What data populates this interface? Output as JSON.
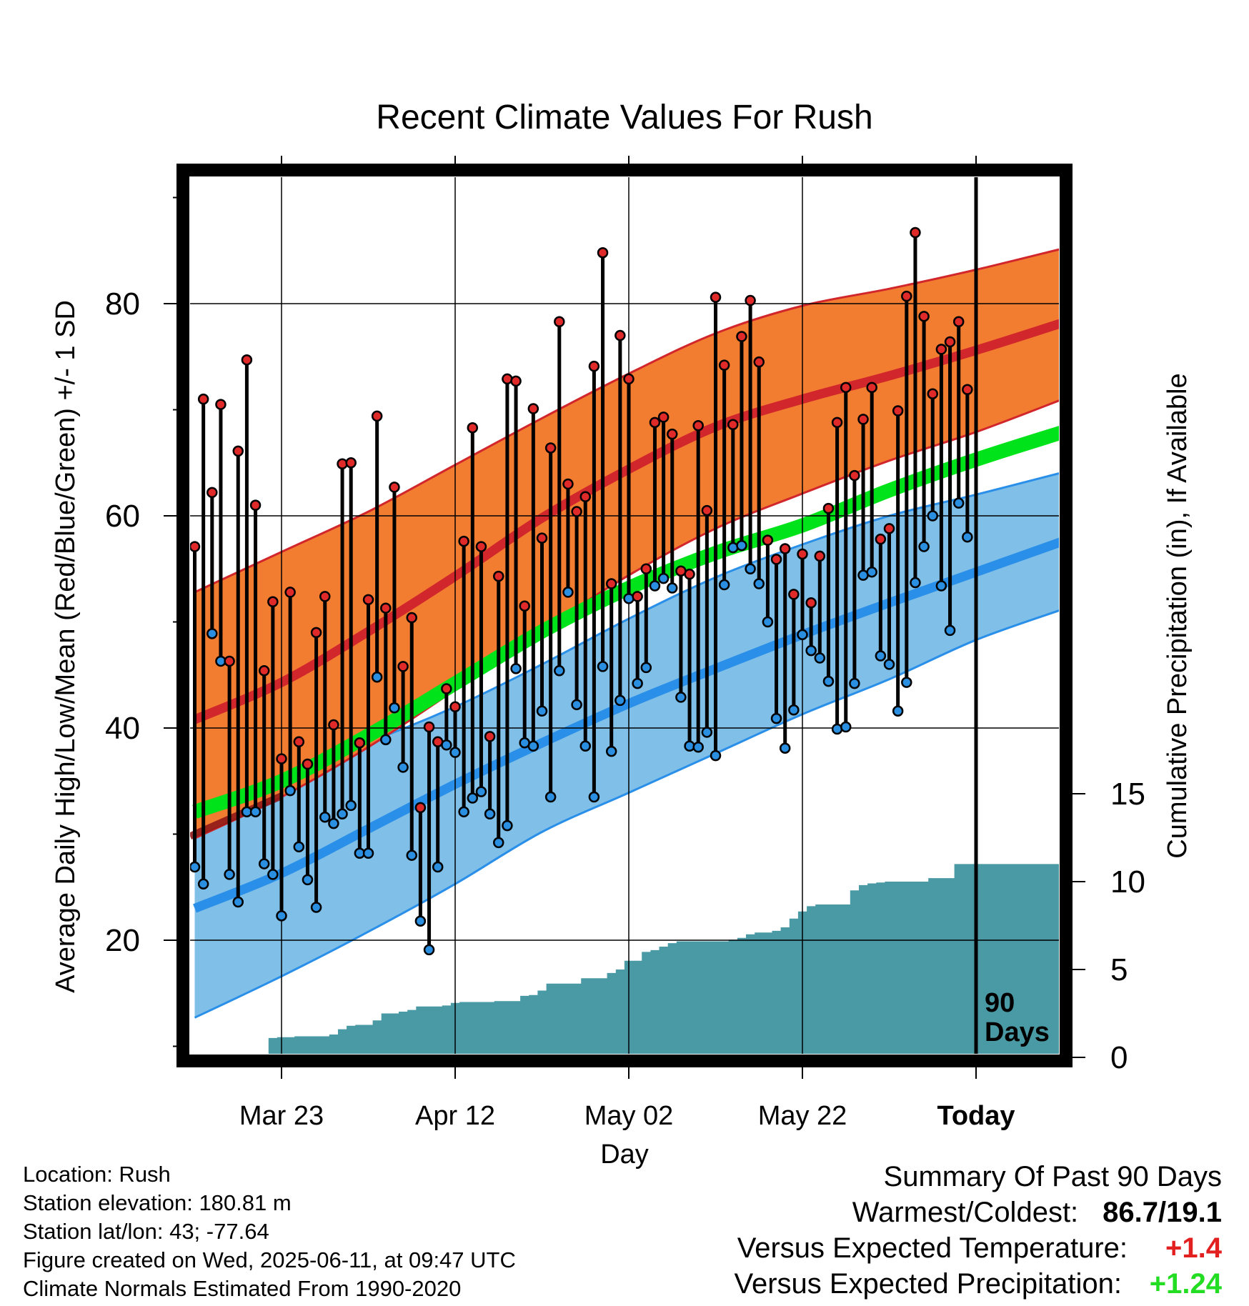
{
  "chart_data": {
    "type": "line",
    "title": "Recent Climate Values For Rush",
    "xlabel": "Day",
    "ylabel": "Average Daily High/Low/Mean (Red/Blue/Green) +/- 1 SD",
    "y2label": "Cumulative Precipitation (in), If Available",
    "xlim": [
      -11,
      90
    ],
    "ylim": [
      8,
      92
    ],
    "y2lim": [
      0,
      40
    ],
    "yticks": [
      20,
      40,
      60,
      80
    ],
    "y2ticks": [
      0,
      5,
      10,
      15
    ],
    "xtick_days": [
      0,
      20,
      40,
      60,
      80
    ],
    "xtick_labels": [
      "Mar 23",
      "Apr 12",
      "May 02",
      "May 22",
      "Today"
    ],
    "today_marker": {
      "day": 80,
      "label_line1": "90",
      "label_line2": "Days"
    },
    "colors": {
      "high_band": "#f27c2f",
      "high_mean": "#d1262c",
      "high_dark": "#8f1a1a",
      "low_band": "#7fbfe8",
      "low_mean": "#2a8fe8",
      "mean_line": "#00e31a",
      "precip": "#4a9aa5",
      "high_dot": "#e02a2a",
      "low_dot": "#2a8fe0",
      "anomaly_positive_temp": "#e22020",
      "anomaly_positive_precip": "#22dd22"
    },
    "normals": {
      "days": [
        -10,
        0,
        10,
        20,
        30,
        40,
        50,
        60,
        70,
        80,
        90
      ],
      "high_upper": [
        52.8,
        56.6,
        60.4,
        64.8,
        69.2,
        73.4,
        77.2,
        79.8,
        81.4,
        83.2,
        85.2
      ],
      "high_mean": [
        40.8,
        44.3,
        49.1,
        54.3,
        59.8,
        64.4,
        68.4,
        71.0,
        73.2,
        75.6,
        78.2
      ],
      "high_lower": [
        29.6,
        33.5,
        38.2,
        43.6,
        49.2,
        54.4,
        58.8,
        62.1,
        65.2,
        67.9,
        71.0
      ],
      "mean_line": [
        32.1,
        35.0,
        39.3,
        44.2,
        49.1,
        53.2,
        56.5,
        59.1,
        62.4,
        65.3,
        67.9
      ],
      "low_upper": [
        33.3,
        36.1,
        38.7,
        42.0,
        46.0,
        50.3,
        54.2,
        57.3,
        60.0,
        62.0,
        64.1
      ],
      "low_mean": [
        23.0,
        26.3,
        30.5,
        34.7,
        38.6,
        42.3,
        45.6,
        48.8,
        51.8,
        54.7,
        57.6
      ],
      "low_lower": [
        12.7,
        16.6,
        20.8,
        25.3,
        30.2,
        33.9,
        37.6,
        41.3,
        44.6,
        48.3,
        51.2
      ]
    },
    "series": [
      {
        "name": "High",
        "values": [
          57.1,
          71.0,
          62.2,
          70.5,
          46.3,
          66.1,
          74.7,
          61.0,
          45.4,
          51.9,
          37.1,
          52.8,
          38.7,
          36.6,
          49.0,
          52.4,
          40.3,
          64.9,
          65.0,
          38.6,
          52.1,
          69.4,
          51.3,
          62.7,
          45.8,
          50.4,
          32.5,
          40.1,
          38.7,
          43.7,
          42.0,
          57.6,
          68.3,
          57.1,
          39.2,
          54.3,
          72.9,
          72.7,
          51.5,
          70.1,
          57.9,
          66.4,
          78.3,
          63.0,
          60.4,
          61.8,
          74.1,
          84.8,
          53.6,
          77.0,
          72.9,
          52.4,
          55.0,
          68.8,
          69.3,
          67.7,
          54.8,
          54.5,
          68.5,
          60.5,
          80.6,
          74.2,
          68.6,
          76.9,
          80.3,
          74.5,
          57.7,
          55.9,
          56.9,
          52.6,
          56.4,
          51.8,
          56.2,
          60.7,
          68.8,
          72.1,
          63.8,
          69.1,
          72.1,
          57.8,
          58.8,
          69.9,
          80.7,
          86.7,
          78.8,
          71.5,
          75.7,
          76.4,
          78.3,
          71.9
        ]
      },
      {
        "name": "Low",
        "values": [
          26.9,
          25.3,
          48.9,
          46.3,
          26.2,
          23.6,
          32.1,
          32.1,
          27.2,
          26.2,
          22.3,
          34.1,
          28.8,
          25.7,
          23.1,
          31.6,
          31.0,
          31.9,
          32.7,
          28.2,
          28.2,
          44.8,
          38.9,
          41.9,
          36.3,
          28.0,
          21.8,
          19.1,
          26.9,
          38.4,
          37.7,
          32.1,
          33.4,
          34.0,
          31.9,
          29.2,
          30.8,
          45.6,
          38.6,
          38.3,
          41.6,
          33.5,
          45.4,
          52.8,
          42.2,
          38.3,
          33.5,
          45.8,
          37.8,
          42.6,
          52.2,
          44.2,
          45.7,
          53.4,
          54.1,
          53.2,
          42.9,
          38.3,
          38.2,
          39.6,
          37.4,
          53.5,
          57.0,
          57.2,
          55.0,
          53.6,
          50.0,
          40.9,
          38.1,
          41.7,
          48.8,
          47.3,
          46.6,
          44.4,
          39.9,
          40.1,
          44.2,
          54.4,
          54.7,
          46.8,
          46.0,
          41.6,
          44.3,
          53.7,
          57.1,
          60.0,
          53.4,
          49.2,
          61.2,
          58.0
        ]
      },
      {
        "name": "Cumulative Precipitation",
        "values": [
          0.0,
          0.0,
          0.0,
          0.1,
          0.1,
          0.15,
          0.15,
          0.15,
          0.2,
          1.1,
          1.15,
          1.15,
          1.2,
          1.2,
          1.2,
          1.2,
          1.3,
          1.6,
          1.8,
          1.85,
          1.85,
          2.1,
          2.5,
          2.5,
          2.6,
          2.7,
          2.9,
          2.9,
          2.9,
          2.95,
          3.1,
          3.15,
          3.15,
          3.15,
          3.15,
          3.2,
          3.2,
          3.2,
          3.5,
          3.55,
          3.8,
          4.2,
          4.2,
          4.2,
          4.2,
          4.5,
          4.5,
          4.5,
          4.8,
          5.0,
          5.5,
          5.5,
          6.0,
          6.1,
          6.3,
          6.5,
          6.6,
          6.6,
          6.6,
          6.6,
          6.6,
          6.6,
          6.7,
          6.8,
          7.0,
          7.1,
          7.1,
          7.2,
          7.4,
          7.9,
          8.3,
          8.6,
          8.7,
          8.7,
          8.7,
          8.7,
          9.5,
          9.8,
          9.9,
          9.95,
          10.0,
          10.0,
          10.0,
          10.0,
          10.0,
          10.2,
          10.2,
          10.2,
          11.0,
          11.0
        ]
      }
    ],
    "grid": true,
    "legend": "none"
  },
  "info": {
    "location": "Location: Rush",
    "elevation": "Station elevation: 180.81 m",
    "latlon": "Station lat/lon: 43; -77.64",
    "created": "Figure created on Wed, 2025-06-11, at 09:47 UTC",
    "normals": "Climate Normals Estimated From 1990-2020"
  },
  "summary": {
    "title": "Summary Of Past 90 Days",
    "warmest_label": "Warmest/Coldest:",
    "warmest_value": "86.7/19.1",
    "temp_label": "Versus Expected Temperature:",
    "temp_value": "+1.4",
    "precip_label": "Versus Expected Precipitation:",
    "precip_value": "+1.24"
  }
}
